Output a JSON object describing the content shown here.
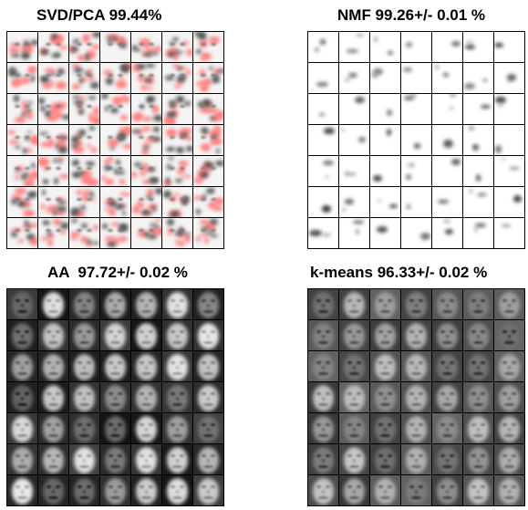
{
  "panels": [
    {
      "id": "svd",
      "title": "SVD/PCA 99.44%",
      "style": "signed-red"
    },
    {
      "id": "nmf",
      "title": "NMF 99.26+/- 0.01 %",
      "style": "parts-light"
    },
    {
      "id": "aa",
      "title": "AA  97.72+/- 0.02 %",
      "style": "faces-dark"
    },
    {
      "id": "km",
      "title": "k-means 96.33+/- 0.02 %",
      "style": "faces-gray"
    }
  ],
  "grid": {
    "rows": 7,
    "cols": 7
  },
  "colors": {
    "background": "#ffffff",
    "border": "#000000",
    "negative": "#ff8080"
  }
}
